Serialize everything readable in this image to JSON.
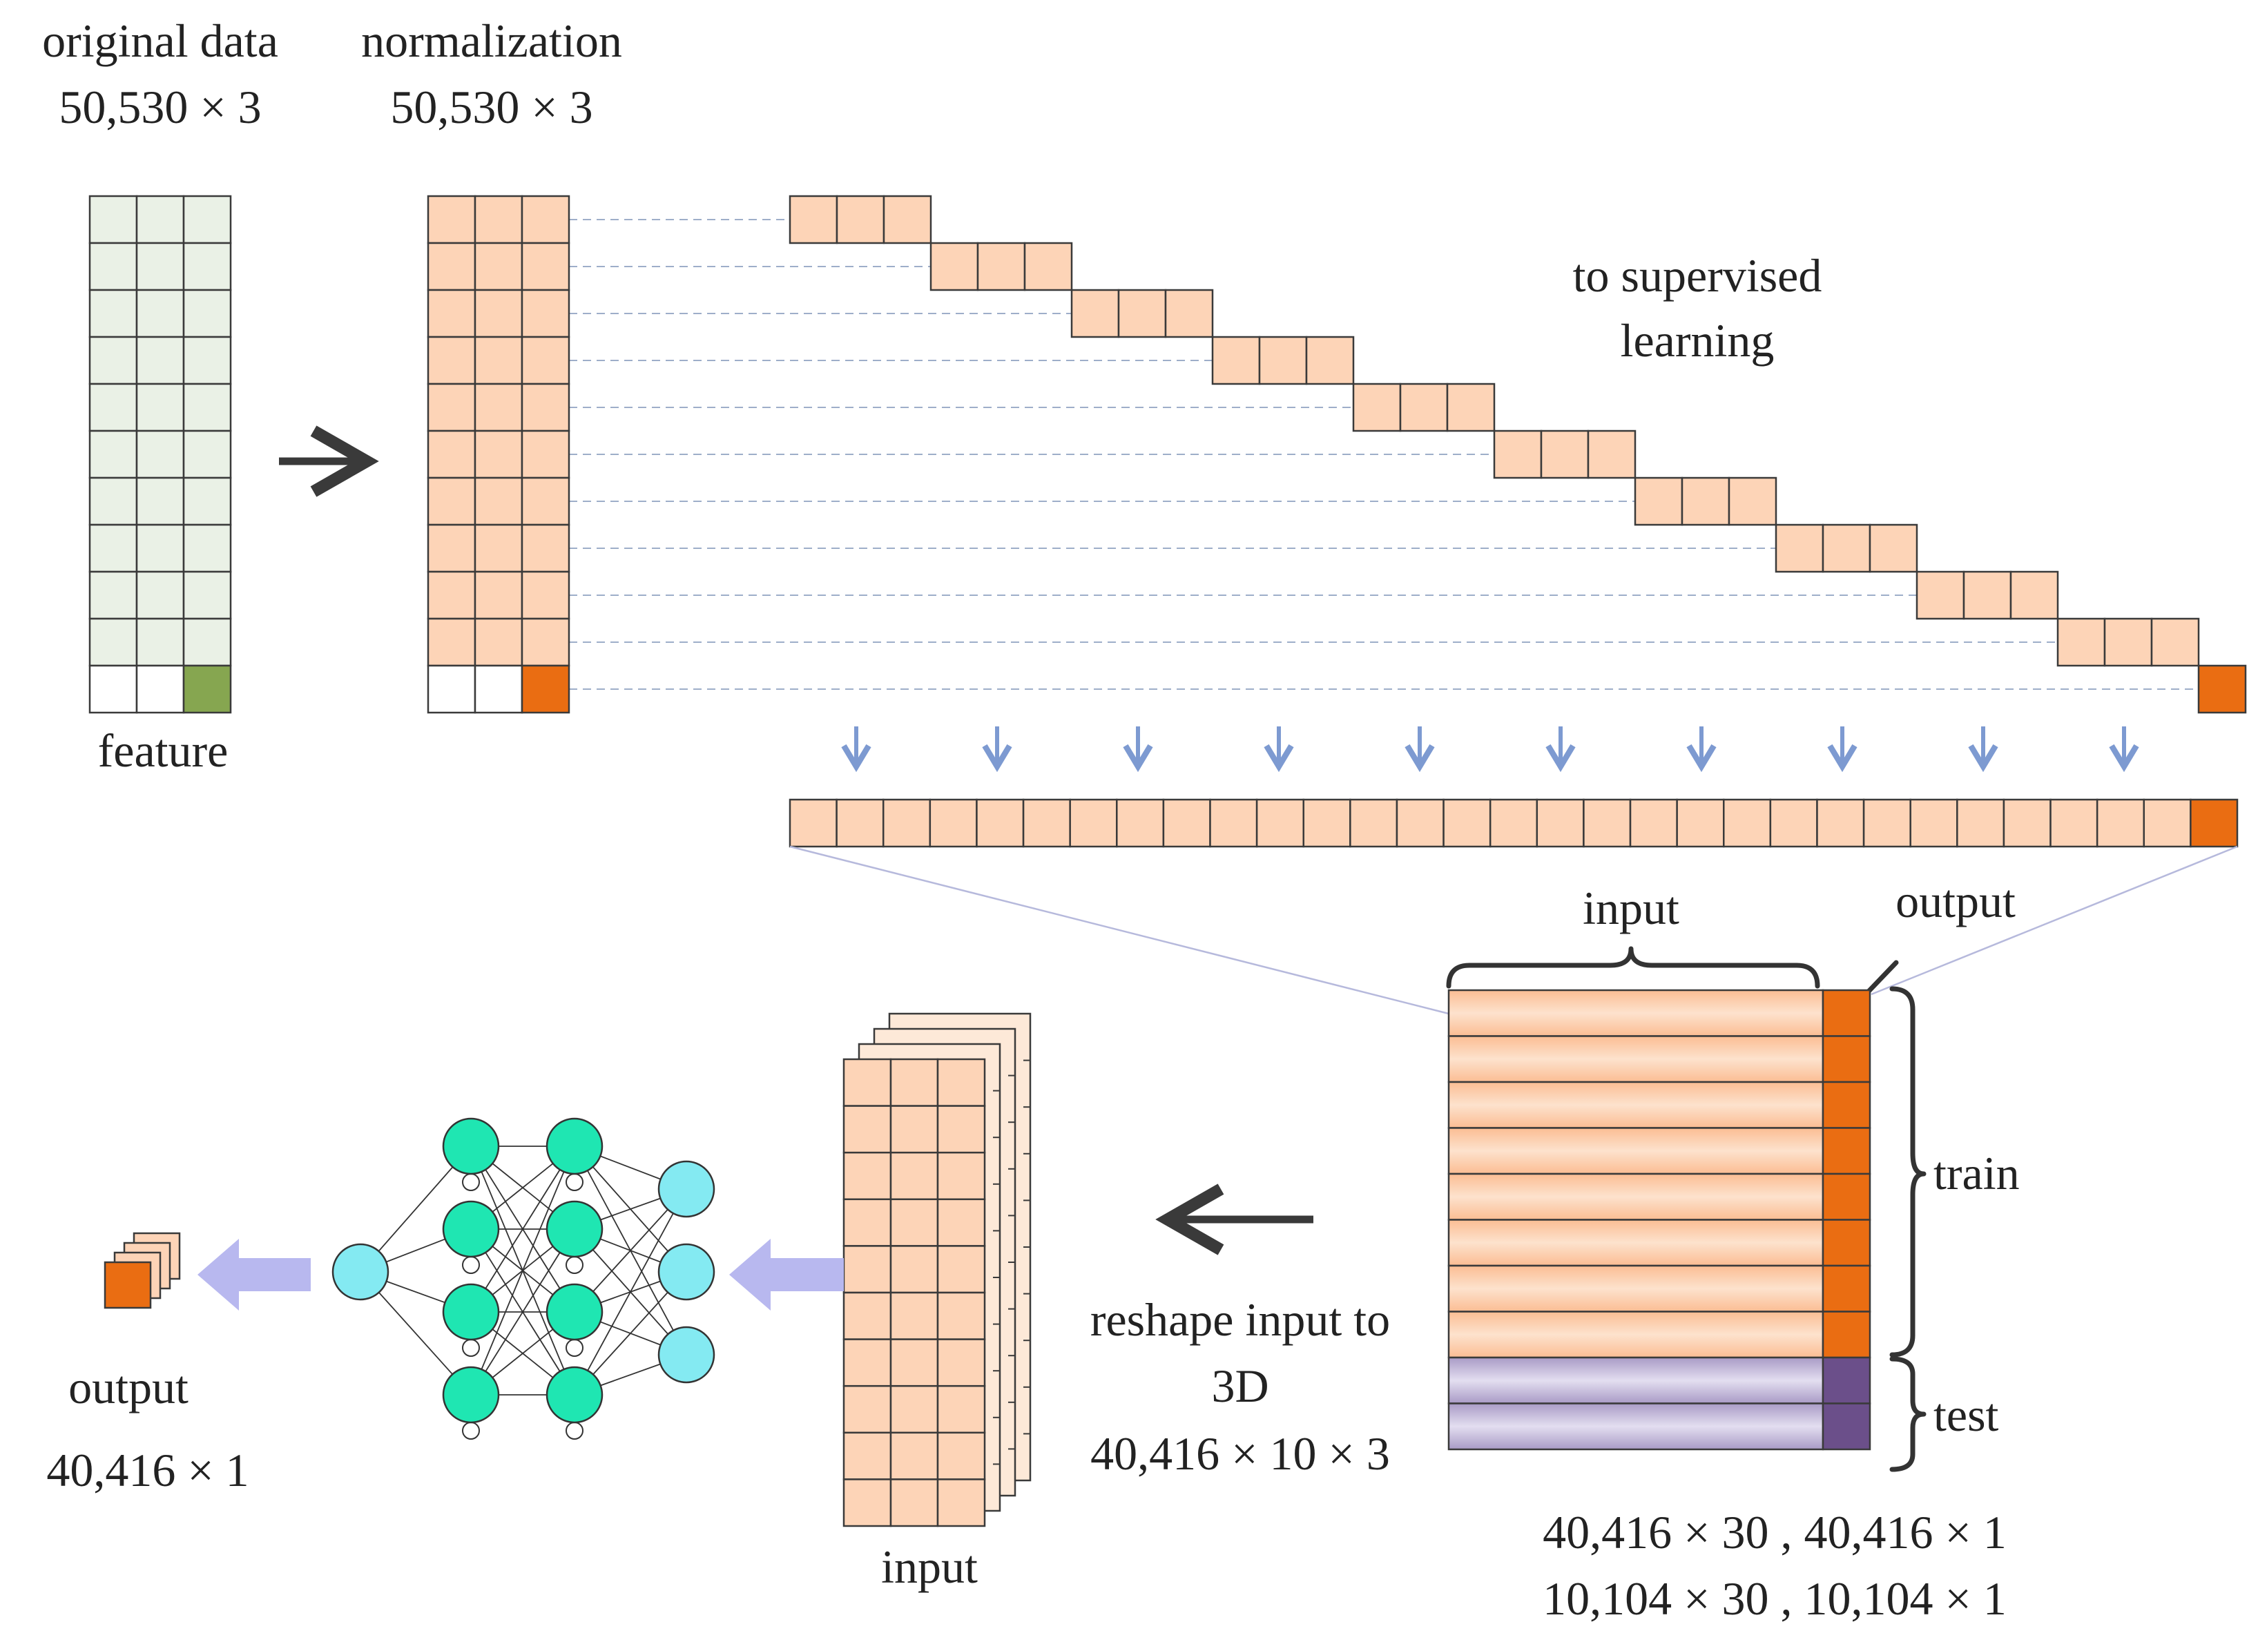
{
  "original": {
    "title": "original data",
    "dims": "50,530 × 3",
    "caption": "feature",
    "rows": 11,
    "cols": 3
  },
  "normalization": {
    "title": "normalization",
    "dims": "50,530 × 3",
    "rows": 11,
    "cols": 3
  },
  "supervised": {
    "label_line1": "to supervised",
    "label_line2": "learning",
    "window_steps": 10,
    "features_per_step": 3
  },
  "split": {
    "input_label": "input",
    "output_label": "output",
    "train_label": "train",
    "test_label": "test",
    "train_rows": 8,
    "test_rows": 2,
    "dims_train": "40,416 × 30 , 40,416 × 1",
    "dims_test": "10,104 × 30 , 10,104 × 1"
  },
  "reshape": {
    "line1": "reshape input to",
    "line2": "3D",
    "dims": "40,416 × 10 × 3",
    "stack_caption": "input",
    "stack_layers": 4,
    "grid_rows": 10,
    "grid_cols": 3
  },
  "network": {
    "layer_sizes": [
      4,
      4,
      3
    ]
  },
  "result": {
    "label": "output",
    "dims": "40,416 × 1"
  },
  "colors": {
    "raw_cell": "#eaf1e6",
    "feature_target": "#86a650",
    "norm_cell": "#fdd4b7",
    "target": "#ea6d12",
    "test_fill": "#c7bfd8",
    "test_target": "#6b4f8a",
    "grid_line": "#3a3a3a",
    "down_arrow": "#7d9ad1",
    "flow_arrow": "#b8b8ef",
    "hidden_node": "#1fe6b2",
    "io_node": "#84eaf2",
    "stack_back": "#fde9d8"
  }
}
